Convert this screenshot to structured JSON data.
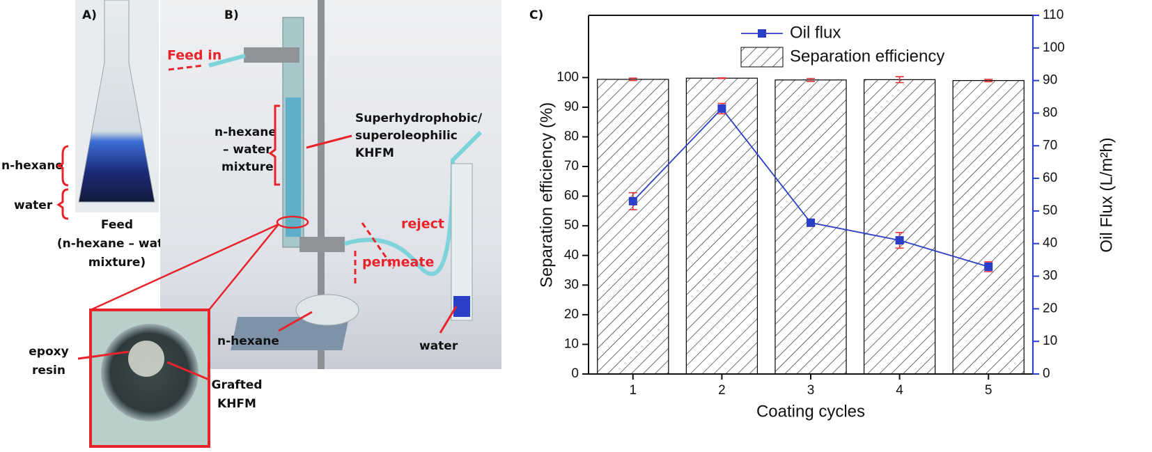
{
  "panel_a": {
    "label": "A)",
    "hexane_label": "n-hexane",
    "water_label": "water",
    "caption": [
      "Feed",
      "(n-hexane – water",
      "mixture)"
    ]
  },
  "panel_b": {
    "label": "B)",
    "feed_in": "Feed in",
    "membrane": [
      "Superhydrophobic/",
      "superoleophilic",
      "KHFM"
    ],
    "mixture": [
      "n-hexane",
      "– water",
      "mixture"
    ],
    "reject": "reject",
    "permeate": "permeate",
    "permeate_product": "n-hexane",
    "reject_product": "water",
    "inset_epoxy": [
      "epoxy",
      "resin"
    ],
    "inset_grafted": [
      "Grafted",
      "KHFM"
    ]
  },
  "chart_data": {
    "type": "bar",
    "panel_label": "C)",
    "x_label": "Coating cycles",
    "y_label": "Separation efficiency (%)",
    "y2_label": "Oil Flux (L/m²h)",
    "categories": [
      "1",
      "2",
      "3",
      "4",
      "5"
    ],
    "ylim": [
      0,
      121
    ],
    "yticks": [
      0,
      10,
      20,
      30,
      40,
      50,
      60,
      70,
      80,
      90,
      100
    ],
    "y2lim": [
      0,
      110
    ],
    "y2ticks": [
      0,
      10,
      20,
      30,
      40,
      50,
      60,
      70,
      80,
      90,
      100,
      110
    ],
    "y2color": "#2a3fc8",
    "legend": "top-center",
    "error_color": "#e8333a",
    "series": [
      {
        "name": "Oil flux",
        "type": "line",
        "axis": "y2",
        "color": "#2a3fc8",
        "values": [
          53,
          81.4,
          46.4,
          41,
          32.9
        ],
        "errors": [
          2.6,
          1.6,
          1.1,
          2.4,
          1.5
        ]
      },
      {
        "name": "Separation efficiency",
        "type": "bar",
        "color": "#000000",
        "hatch": true,
        "values": [
          99.4,
          99.8,
          99.2,
          99.3,
          99.0
        ],
        "errors": [
          0.4,
          0.1,
          0.5,
          1.0,
          0.4
        ]
      }
    ]
  }
}
